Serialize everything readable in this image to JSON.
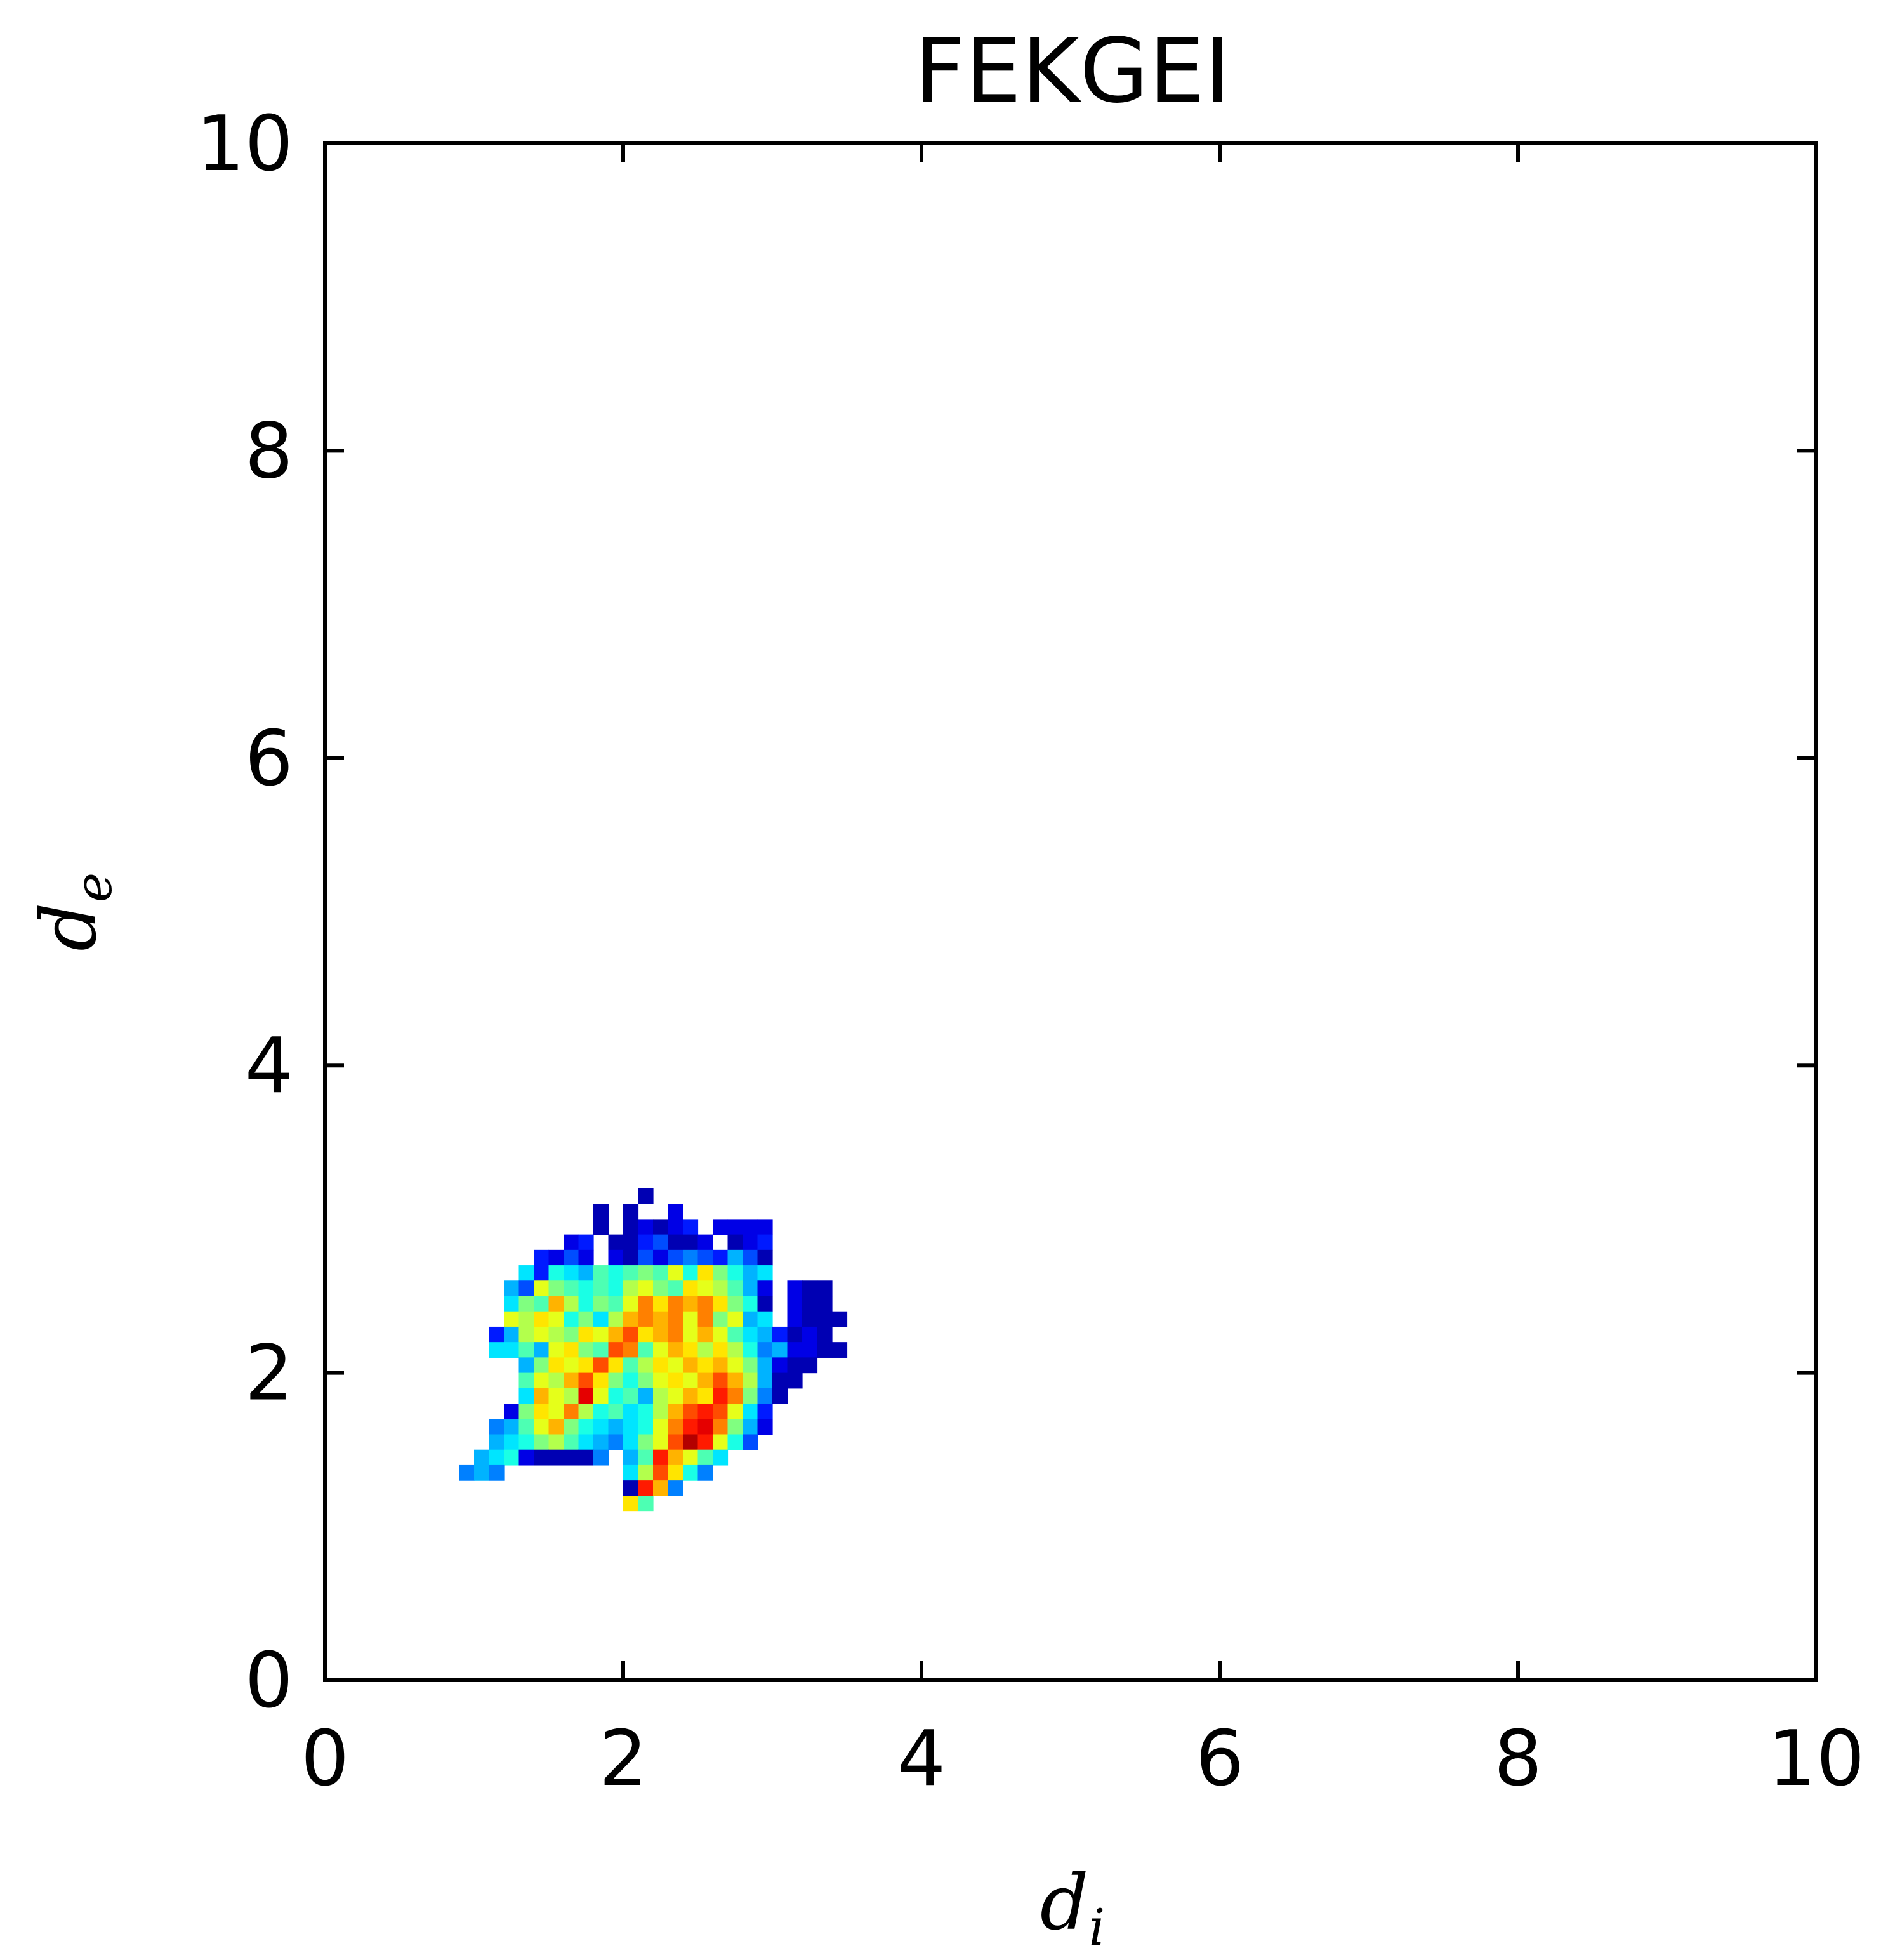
{
  "chart_data": {
    "type": "heatmap",
    "title": "FEKGEI",
    "xlabel": "d",
    "xlabel_subscript": "i",
    "ylabel": "d",
    "ylabel_subscript": "e",
    "xlim": [
      0,
      10
    ],
    "ylim": [
      0,
      10
    ],
    "xticks": [
      "0",
      "2",
      "4",
      "6",
      "8",
      "10"
    ],
    "yticks": [
      "0",
      "2",
      "4",
      "6",
      "8",
      "10"
    ],
    "grid": false,
    "colormap": "jet",
    "bin_size": 0.1,
    "cells": [
      [
        2.1,
        3.1,
        0.05
      ],
      [
        1.8,
        3.0,
        0.05
      ],
      [
        2.0,
        3.0,
        0.05
      ],
      [
        2.3,
        3.0,
        0.1
      ],
      [
        1.8,
        2.9,
        0.05
      ],
      [
        2.0,
        2.9,
        0.05
      ],
      [
        2.1,
        2.9,
        0.1
      ],
      [
        2.2,
        2.9,
        0.05
      ],
      [
        2.3,
        2.9,
        0.1
      ],
      [
        2.4,
        2.9,
        0.15
      ],
      [
        2.6,
        2.9,
        0.1
      ],
      [
        2.7,
        2.9,
        0.1
      ],
      [
        2.8,
        2.9,
        0.1
      ],
      [
        2.9,
        2.9,
        0.1
      ],
      [
        1.6,
        2.8,
        0.1
      ],
      [
        1.7,
        2.8,
        0.15
      ],
      [
        1.9,
        2.8,
        0.05
      ],
      [
        2.0,
        2.8,
        0.05
      ],
      [
        2.1,
        2.8,
        0.15
      ],
      [
        2.2,
        2.8,
        0.2
      ],
      [
        2.3,
        2.8,
        0.05
      ],
      [
        2.4,
        2.8,
        0.05
      ],
      [
        2.5,
        2.8,
        0.1
      ],
      [
        2.7,
        2.8,
        0.05
      ],
      [
        2.8,
        2.8,
        0.1
      ],
      [
        2.9,
        2.8,
        0.15
      ],
      [
        1.4,
        2.7,
        0.15
      ],
      [
        1.5,
        2.7,
        0.1
      ],
      [
        1.6,
        2.7,
        0.2
      ],
      [
        1.7,
        2.7,
        0.1
      ],
      [
        1.9,
        2.7,
        0.1
      ],
      [
        2.0,
        2.7,
        0.05
      ],
      [
        2.1,
        2.7,
        0.2
      ],
      [
        2.2,
        2.7,
        0.1
      ],
      [
        2.3,
        2.7,
        0.2
      ],
      [
        2.4,
        2.7,
        0.25
      ],
      [
        2.5,
        2.7,
        0.2
      ],
      [
        2.6,
        2.7,
        0.15
      ],
      [
        2.7,
        2.7,
        0.3
      ],
      [
        2.8,
        2.7,
        0.2
      ],
      [
        2.9,
        2.7,
        0.05
      ],
      [
        1.3,
        2.6,
        0.35
      ],
      [
        1.4,
        2.6,
        0.15
      ],
      [
        1.5,
        2.6,
        0.4
      ],
      [
        1.6,
        2.6,
        0.35
      ],
      [
        1.7,
        2.6,
        0.3
      ],
      [
        1.8,
        2.6,
        0.45
      ],
      [
        1.9,
        2.6,
        0.4
      ],
      [
        2.0,
        2.6,
        0.45
      ],
      [
        2.1,
        2.6,
        0.5
      ],
      [
        2.2,
        2.6,
        0.45
      ],
      [
        2.3,
        2.6,
        0.6
      ],
      [
        2.4,
        2.6,
        0.4
      ],
      [
        2.5,
        2.6,
        0.65
      ],
      [
        2.6,
        2.6,
        0.5
      ],
      [
        2.7,
        2.6,
        0.4
      ],
      [
        2.8,
        2.6,
        0.3
      ],
      [
        2.9,
        2.6,
        0.35
      ],
      [
        1.2,
        2.5,
        0.3
      ],
      [
        1.3,
        2.5,
        0.2
      ],
      [
        1.4,
        2.5,
        0.6
      ],
      [
        1.5,
        2.5,
        0.5
      ],
      [
        1.6,
        2.5,
        0.45
      ],
      [
        1.7,
        2.5,
        0.4
      ],
      [
        1.8,
        2.5,
        0.45
      ],
      [
        1.9,
        2.5,
        0.4
      ],
      [
        2.0,
        2.5,
        0.55
      ],
      [
        2.1,
        2.5,
        0.6
      ],
      [
        2.2,
        2.5,
        0.5
      ],
      [
        2.3,
        2.5,
        0.45
      ],
      [
        2.4,
        2.5,
        0.65
      ],
      [
        2.5,
        2.5,
        0.6
      ],
      [
        2.6,
        2.5,
        0.55
      ],
      [
        2.7,
        2.5,
        0.45
      ],
      [
        2.8,
        2.5,
        0.3
      ],
      [
        2.9,
        2.5,
        0.1
      ],
      [
        3.1,
        2.5,
        0.1
      ],
      [
        3.2,
        2.5,
        0.05
      ],
      [
        3.3,
        2.5,
        0.05
      ],
      [
        1.2,
        2.4,
        0.35
      ],
      [
        1.3,
        2.4,
        0.5
      ],
      [
        1.4,
        2.4,
        0.45
      ],
      [
        1.5,
        2.4,
        0.7
      ],
      [
        1.6,
        2.4,
        0.55
      ],
      [
        1.7,
        2.4,
        0.4
      ],
      [
        1.8,
        2.4,
        0.5
      ],
      [
        1.9,
        2.4,
        0.45
      ],
      [
        2.0,
        2.4,
        0.6
      ],
      [
        2.1,
        2.4,
        0.75
      ],
      [
        2.2,
        2.4,
        0.65
      ],
      [
        2.3,
        2.4,
        0.75
      ],
      [
        2.4,
        2.4,
        0.7
      ],
      [
        2.5,
        2.4,
        0.75
      ],
      [
        2.6,
        2.4,
        0.65
      ],
      [
        2.7,
        2.4,
        0.5
      ],
      [
        2.8,
        2.4,
        0.4
      ],
      [
        2.9,
        2.4,
        0.05
      ],
      [
        3.1,
        2.4,
        0.1
      ],
      [
        3.2,
        2.4,
        0.05
      ],
      [
        3.3,
        2.4,
        0.05
      ],
      [
        1.2,
        2.3,
        0.6
      ],
      [
        1.3,
        2.3,
        0.55
      ],
      [
        1.4,
        2.3,
        0.65
      ],
      [
        1.5,
        2.3,
        0.6
      ],
      [
        1.6,
        2.3,
        0.4
      ],
      [
        1.7,
        2.3,
        0.5
      ],
      [
        1.8,
        2.3,
        0.35
      ],
      [
        1.9,
        2.3,
        0.55
      ],
      [
        2.0,
        2.3,
        0.7
      ],
      [
        2.1,
        2.3,
        0.75
      ],
      [
        2.2,
        2.3,
        0.7
      ],
      [
        2.3,
        2.3,
        0.75
      ],
      [
        2.4,
        2.3,
        0.6
      ],
      [
        2.5,
        2.3,
        0.75
      ],
      [
        2.6,
        2.3,
        0.5
      ],
      [
        2.7,
        2.3,
        0.6
      ],
      [
        2.8,
        2.3,
        0.3
      ],
      [
        2.9,
        2.3,
        0.35
      ],
      [
        3.1,
        2.3,
        0.1
      ],
      [
        3.2,
        2.3,
        0.05
      ],
      [
        3.3,
        2.3,
        0.05
      ],
      [
        3.4,
        2.3,
        0.05
      ],
      [
        1.1,
        2.2,
        0.15
      ],
      [
        1.2,
        2.2,
        0.3
      ],
      [
        1.3,
        2.2,
        0.55
      ],
      [
        1.4,
        2.2,
        0.6
      ],
      [
        1.5,
        2.2,
        0.55
      ],
      [
        1.6,
        2.2,
        0.5
      ],
      [
        1.7,
        2.2,
        0.65
      ],
      [
        1.8,
        2.2,
        0.6
      ],
      [
        1.9,
        2.2,
        0.7
      ],
      [
        2.0,
        2.2,
        0.8
      ],
      [
        2.1,
        2.2,
        0.65
      ],
      [
        2.2,
        2.2,
        0.7
      ],
      [
        2.3,
        2.2,
        0.75
      ],
      [
        2.4,
        2.2,
        0.6
      ],
      [
        2.5,
        2.2,
        0.7
      ],
      [
        2.6,
        2.2,
        0.6
      ],
      [
        2.7,
        2.2,
        0.45
      ],
      [
        2.8,
        2.2,
        0.35
      ],
      [
        2.9,
        2.2,
        0.3
      ],
      [
        3.0,
        2.2,
        0.15
      ],
      [
        3.1,
        2.2,
        0.05
      ],
      [
        3.2,
        2.2,
        0.1
      ],
      [
        3.3,
        2.2,
        0.05
      ],
      [
        1.1,
        2.1,
        0.35
      ],
      [
        1.2,
        2.1,
        0.35
      ],
      [
        1.3,
        2.1,
        0.45
      ],
      [
        1.4,
        2.1,
        0.3
      ],
      [
        1.5,
        2.1,
        0.6
      ],
      [
        1.6,
        2.1,
        0.65
      ],
      [
        1.7,
        2.1,
        0.5
      ],
      [
        1.8,
        2.1,
        0.45
      ],
      [
        1.9,
        2.1,
        0.8
      ],
      [
        2.0,
        2.1,
        0.75
      ],
      [
        2.1,
        2.1,
        0.45
      ],
      [
        2.2,
        2.1,
        0.6
      ],
      [
        2.3,
        2.1,
        0.7
      ],
      [
        2.4,
        2.1,
        0.65
      ],
      [
        2.5,
        2.1,
        0.55
      ],
      [
        2.6,
        2.1,
        0.65
      ],
      [
        2.7,
        2.1,
        0.55
      ],
      [
        2.8,
        2.1,
        0.4
      ],
      [
        2.9,
        2.1,
        0.25
      ],
      [
        3.0,
        2.1,
        0.3
      ],
      [
        3.1,
        2.1,
        0.1
      ],
      [
        3.2,
        2.1,
        0.1
      ],
      [
        3.3,
        2.1,
        0.05
      ],
      [
        3.4,
        2.1,
        0.05
      ],
      [
        1.3,
        2.0,
        0.3
      ],
      [
        1.4,
        2.0,
        0.5
      ],
      [
        1.5,
        2.0,
        0.65
      ],
      [
        1.6,
        2.0,
        0.6
      ],
      [
        1.7,
        2.0,
        0.65
      ],
      [
        1.8,
        2.0,
        0.8
      ],
      [
        1.9,
        2.0,
        0.65
      ],
      [
        2.0,
        2.0,
        0.45
      ],
      [
        2.1,
        2.0,
        0.55
      ],
      [
        2.2,
        2.0,
        0.65
      ],
      [
        2.3,
        2.0,
        0.6
      ],
      [
        2.4,
        2.0,
        0.7
      ],
      [
        2.5,
        2.0,
        0.65
      ],
      [
        2.6,
        2.0,
        0.7
      ],
      [
        2.7,
        2.0,
        0.6
      ],
      [
        2.8,
        2.0,
        0.5
      ],
      [
        2.9,
        2.0,
        0.3
      ],
      [
        3.0,
        2.0,
        0.1
      ],
      [
        3.1,
        2.0,
        0.05
      ],
      [
        3.2,
        2.0,
        0.05
      ],
      [
        1.3,
        1.9,
        0.45
      ],
      [
        1.4,
        1.9,
        0.6
      ],
      [
        1.5,
        1.9,
        0.55
      ],
      [
        1.6,
        1.9,
        0.7
      ],
      [
        1.7,
        1.9,
        0.8
      ],
      [
        1.8,
        1.9,
        0.65
      ],
      [
        1.9,
        1.9,
        0.5
      ],
      [
        2.0,
        1.9,
        0.4
      ],
      [
        2.1,
        1.9,
        0.5
      ],
      [
        2.2,
        1.9,
        0.6
      ],
      [
        2.3,
        1.9,
        0.65
      ],
      [
        2.4,
        1.9,
        0.6
      ],
      [
        2.5,
        1.9,
        0.7
      ],
      [
        2.6,
        1.9,
        0.8
      ],
      [
        2.7,
        1.9,
        0.7
      ],
      [
        2.8,
        1.9,
        0.55
      ],
      [
        2.9,
        1.9,
        0.3
      ],
      [
        3.0,
        1.9,
        0.05
      ],
      [
        3.1,
        1.9,
        0.05
      ],
      [
        1.3,
        1.8,
        0.35
      ],
      [
        1.4,
        1.8,
        0.7
      ],
      [
        1.5,
        1.8,
        0.6
      ],
      [
        1.6,
        1.8,
        0.55
      ],
      [
        1.7,
        1.8,
        0.9
      ],
      [
        1.8,
        1.8,
        0.6
      ],
      [
        1.9,
        1.8,
        0.4
      ],
      [
        2.0,
        1.8,
        0.45
      ],
      [
        2.1,
        1.8,
        0.3
      ],
      [
        2.2,
        1.8,
        0.55
      ],
      [
        2.3,
        1.8,
        0.6
      ],
      [
        2.4,
        1.8,
        0.7
      ],
      [
        2.5,
        1.8,
        0.65
      ],
      [
        2.6,
        1.8,
        0.85
      ],
      [
        2.7,
        1.8,
        0.75
      ],
      [
        2.8,
        1.8,
        0.5
      ],
      [
        2.9,
        1.8,
        0.25
      ],
      [
        3.0,
        1.8,
        0.05
      ],
      [
        1.2,
        1.7,
        0.1
      ],
      [
        1.3,
        1.7,
        0.5
      ],
      [
        1.4,
        1.7,
        0.65
      ],
      [
        1.5,
        1.7,
        0.6
      ],
      [
        1.6,
        1.7,
        0.75
      ],
      [
        1.7,
        1.7,
        0.55
      ],
      [
        1.8,
        1.7,
        0.4
      ],
      [
        1.9,
        1.7,
        0.45
      ],
      [
        2.0,
        1.7,
        0.35
      ],
      [
        2.1,
        1.7,
        0.4
      ],
      [
        2.2,
        1.7,
        0.55
      ],
      [
        2.3,
        1.7,
        0.7
      ],
      [
        2.4,
        1.7,
        0.8
      ],
      [
        2.5,
        1.7,
        0.85
      ],
      [
        2.6,
        1.7,
        0.8
      ],
      [
        2.7,
        1.7,
        0.6
      ],
      [
        2.8,
        1.7,
        0.35
      ],
      [
        2.9,
        1.7,
        0.15
      ],
      [
        1.1,
        1.6,
        0.25
      ],
      [
        1.2,
        1.6,
        0.3
      ],
      [
        1.3,
        1.6,
        0.45
      ],
      [
        1.4,
        1.6,
        0.6
      ],
      [
        1.5,
        1.6,
        0.7
      ],
      [
        1.6,
        1.6,
        0.5
      ],
      [
        1.7,
        1.6,
        0.4
      ],
      [
        1.8,
        1.6,
        0.35
      ],
      [
        1.9,
        1.6,
        0.3
      ],
      [
        2.0,
        1.6,
        0.35
      ],
      [
        2.1,
        1.6,
        0.4
      ],
      [
        2.2,
        1.6,
        0.6
      ],
      [
        2.3,
        1.6,
        0.75
      ],
      [
        2.4,
        1.6,
        0.85
      ],
      [
        2.5,
        1.6,
        0.9
      ],
      [
        2.6,
        1.6,
        0.75
      ],
      [
        2.7,
        1.6,
        0.5
      ],
      [
        2.8,
        1.6,
        0.3
      ],
      [
        2.9,
        1.6,
        0.1
      ],
      [
        1.1,
        1.5,
        0.3
      ],
      [
        1.2,
        1.5,
        0.35
      ],
      [
        1.3,
        1.5,
        0.4
      ],
      [
        1.4,
        1.5,
        0.5
      ],
      [
        1.5,
        1.5,
        0.55
      ],
      [
        1.6,
        1.5,
        0.45
      ],
      [
        1.7,
        1.5,
        0.35
      ],
      [
        1.8,
        1.5,
        0.3
      ],
      [
        1.9,
        1.5,
        0.25
      ],
      [
        2.0,
        1.5,
        0.35
      ],
      [
        2.1,
        1.5,
        0.5
      ],
      [
        2.2,
        1.5,
        0.6
      ],
      [
        2.3,
        1.5,
        0.8
      ],
      [
        2.4,
        1.5,
        0.95
      ],
      [
        2.5,
        1.5,
        0.85
      ],
      [
        2.6,
        1.5,
        0.6
      ],
      [
        2.7,
        1.5,
        0.4
      ],
      [
        2.8,
        1.5,
        0.2
      ],
      [
        1.0,
        1.4,
        0.3
      ],
      [
        1.1,
        1.4,
        0.35
      ],
      [
        1.2,
        1.4,
        0.4
      ],
      [
        1.3,
        1.4,
        0.1
      ],
      [
        1.4,
        1.4,
        0.05
      ],
      [
        1.5,
        1.4,
        0.05
      ],
      [
        1.6,
        1.4,
        0.05
      ],
      [
        1.7,
        1.4,
        0.05
      ],
      [
        1.8,
        1.4,
        0.25
      ],
      [
        2.0,
        1.4,
        0.3
      ],
      [
        2.1,
        1.4,
        0.45
      ],
      [
        2.2,
        1.4,
        0.85
      ],
      [
        2.3,
        1.4,
        0.7
      ],
      [
        2.4,
        1.4,
        0.6
      ],
      [
        2.5,
        1.4,
        0.45
      ],
      [
        2.6,
        1.4,
        0.35
      ],
      [
        0.9,
        1.3,
        0.25
      ],
      [
        1.0,
        1.3,
        0.3
      ],
      [
        1.1,
        1.3,
        0.25
      ],
      [
        2.0,
        1.3,
        0.35
      ],
      [
        2.1,
        1.3,
        0.55
      ],
      [
        2.2,
        1.3,
        0.8
      ],
      [
        2.3,
        1.3,
        0.65
      ],
      [
        2.4,
        1.3,
        0.4
      ],
      [
        2.5,
        1.3,
        0.25
      ],
      [
        2.0,
        1.2,
        0.05
      ],
      [
        2.1,
        1.2,
        0.85
      ],
      [
        2.2,
        1.2,
        0.7
      ],
      [
        2.3,
        1.2,
        0.25
      ],
      [
        2.0,
        1.1,
        0.65
      ],
      [
        2.1,
        1.1,
        0.45
      ]
    ]
  }
}
